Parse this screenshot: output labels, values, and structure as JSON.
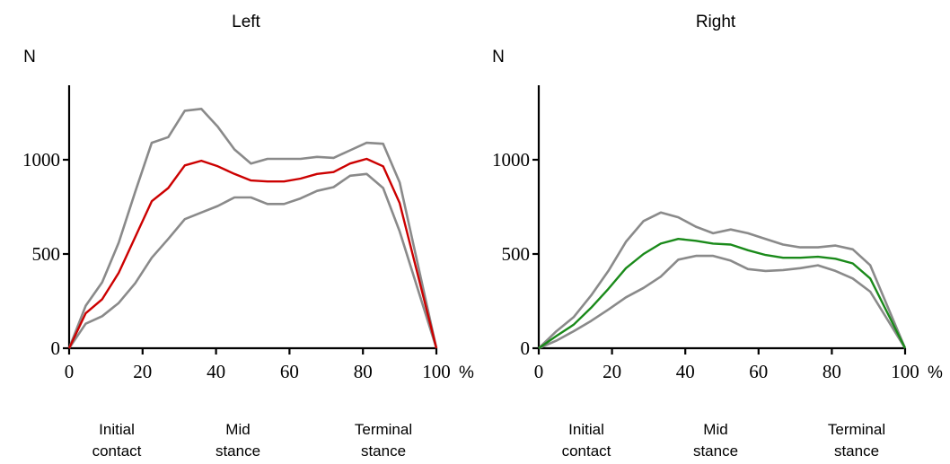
{
  "chart_data": [
    {
      "type": "line",
      "title": "Left",
      "ylabel": "N",
      "x_unit": "%",
      "xlim": [
        0,
        100
      ],
      "ylim": [
        0,
        1400
      ],
      "xticks": [
        0,
        20,
        40,
        60,
        80,
        100
      ],
      "yticks": [
        0,
        500,
        1000
      ],
      "x": [
        0,
        4.5,
        9,
        13.5,
        18,
        22.5,
        27,
        31.5,
        36,
        40.5,
        45,
        49.5,
        54,
        58.5,
        63,
        67.5,
        72,
        76.5,
        81,
        85.5,
        90,
        100
      ],
      "series": [
        {
          "role": "upper",
          "color": "#8a8a8a",
          "values": [
            0,
            225,
            350,
            560,
            830,
            1090,
            1120,
            1260,
            1270,
            1175,
            1055,
            980,
            1005,
            1005,
            1005,
            1015,
            1010,
            1050,
            1090,
            1085,
            880,
            0
          ]
        },
        {
          "role": "mean",
          "color": "#cc0000",
          "values": [
            0,
            185,
            260,
            400,
            590,
            780,
            850,
            970,
            995,
            965,
            925,
            890,
            885,
            885,
            900,
            925,
            935,
            980,
            1005,
            965,
            770,
            0
          ]
        },
        {
          "role": "lower",
          "color": "#8a8a8a",
          "values": [
            0,
            130,
            170,
            240,
            345,
            480,
            580,
            685,
            720,
            755,
            800,
            800,
            765,
            765,
            795,
            835,
            855,
            915,
            925,
            850,
            620,
            0
          ]
        }
      ],
      "phases": [
        {
          "line1": "Initial",
          "line2": "contact"
        },
        {
          "line1": "Mid",
          "line2": "stance"
        },
        {
          "line1": "Terminal",
          "line2": "stance"
        }
      ]
    },
    {
      "type": "line",
      "title": "Right",
      "ylabel": "N",
      "x_unit": "%",
      "xlim": [
        0,
        100
      ],
      "ylim": [
        0,
        1400
      ],
      "xticks": [
        0,
        20,
        40,
        60,
        80,
        100
      ],
      "yticks": [
        0,
        500,
        1000
      ],
      "x": [
        0,
        4.8,
        9.5,
        14.3,
        19,
        23.8,
        28.6,
        33.3,
        38.1,
        42.9,
        47.6,
        52.4,
        57.1,
        61.9,
        66.7,
        71.4,
        76.2,
        81,
        85.7,
        90.5,
        100
      ],
      "series": [
        {
          "role": "upper",
          "color": "#8a8a8a",
          "values": [
            0,
            90,
            165,
            280,
            410,
            565,
            675,
            720,
            695,
            645,
            610,
            630,
            610,
            580,
            550,
            535,
            535,
            545,
            525,
            440,
            0
          ]
        },
        {
          "role": "mean",
          "color": "#1a8a1a",
          "values": [
            0,
            65,
            125,
            215,
            315,
            425,
            500,
            555,
            580,
            570,
            555,
            550,
            520,
            495,
            480,
            480,
            485,
            475,
            450,
            370,
            0
          ]
        },
        {
          "role": "lower",
          "color": "#8a8a8a",
          "values": [
            0,
            40,
            90,
            145,
            205,
            270,
            320,
            380,
            470,
            490,
            490,
            465,
            420,
            410,
            415,
            425,
            440,
            410,
            370,
            300,
            0
          ]
        }
      ],
      "phases": [
        {
          "line1": "Initial",
          "line2": "contact"
        },
        {
          "line1": "Mid",
          "line2": "stance"
        },
        {
          "line1": "Terminal",
          "line2": "stance"
        }
      ]
    }
  ]
}
